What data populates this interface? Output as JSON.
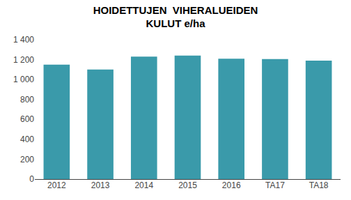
{
  "chart_data": {
    "type": "bar",
    "title": "HOIDETTUJEN  VIHERALUEIDEN\nKULUT e/ha",
    "categories": [
      "2012",
      "2013",
      "2014",
      "2015",
      "2016",
      "TA17",
      "TA18"
    ],
    "values": [
      1150,
      1100,
      1230,
      1240,
      1210,
      1205,
      1190
    ],
    "color": "#3a9aaa",
    "ylim": [
      0,
      1400
    ],
    "yticks": [
      0,
      200,
      400,
      600,
      800,
      {
        "value": 1000,
        "label": "1 000"
      },
      {
        "value": 1200,
        "label": "1 200"
      },
      {
        "value": 1400,
        "label": "1 400"
      }
    ],
    "grid": false
  }
}
